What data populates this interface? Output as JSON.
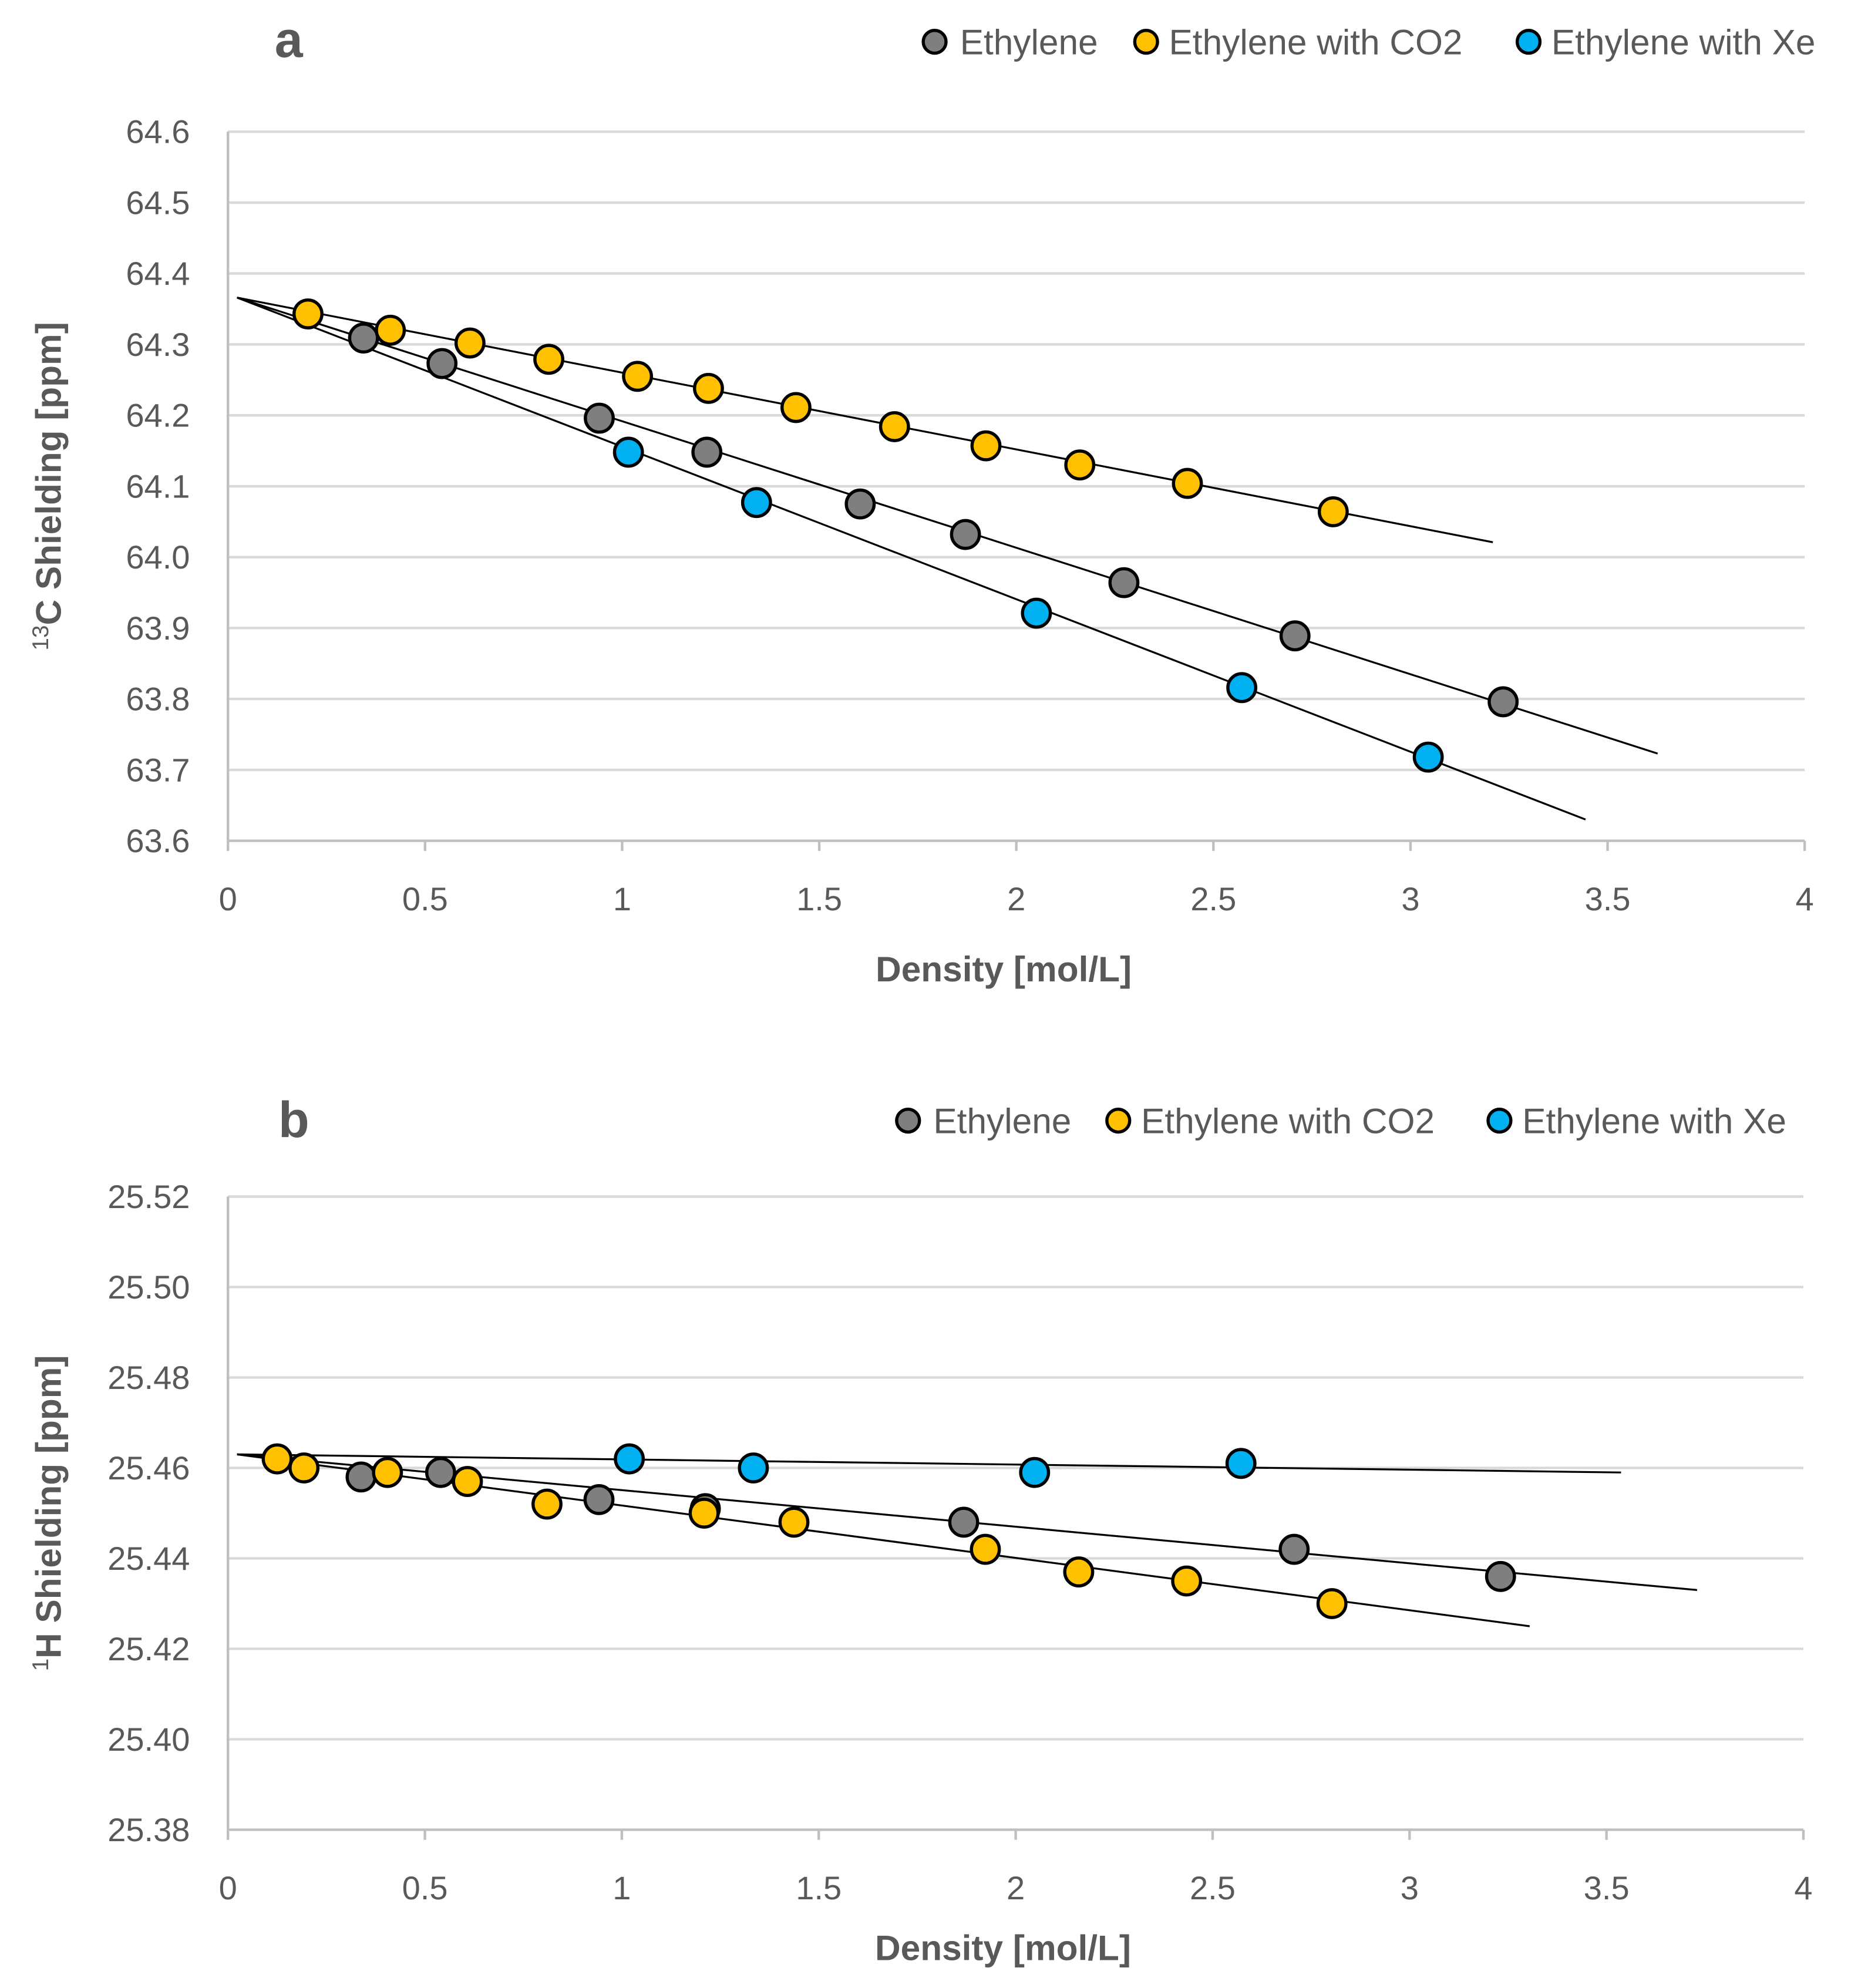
{
  "colors": {
    "Ethylene": "#7f7f7f",
    "Ethylene with CO2": "#ffc000",
    "Ethylene with Xe": "#00b0f0",
    "grid": "#d9d9d9",
    "axis": "#bfbfbf",
    "fit": "#000000"
  },
  "chart_data": [
    {
      "type": "scatter",
      "panel_label": "a",
      "xlabel": "Density  [mol/L]",
      "ylabel_sup": "13",
      "ylabel": "C Shielding  [ppm]",
      "xlim": [
        0,
        4
      ],
      "ylim": [
        63.6,
        64.6
      ],
      "xticks": [
        0,
        0.5,
        1,
        1.5,
        2,
        2.5,
        3,
        3.5,
        4
      ],
      "xtick_labels": [
        "0",
        "0.5",
        "1",
        "1.5",
        "2",
        "2.5",
        "3",
        "3.5",
        "4"
      ],
      "yticks": [
        63.6,
        63.7,
        63.8,
        63.9,
        64.0,
        64.1,
        64.2,
        64.3,
        64.4,
        64.5,
        64.6
      ],
      "ytick_labels": [
        "63.6",
        "63.7",
        "63.8",
        "63.9",
        "64.0",
        "64.1",
        "64.2",
        "64.3",
        "64.4",
        "64.5",
        "64.6"
      ],
      "grid": true,
      "legend_position": "top-right",
      "series": [
        {
          "name": "Ethylene",
          "x": [
            0.344,
            0.543,
            0.942,
            1.215,
            1.604,
            1.871,
            2.273,
            2.707,
            3.235
          ],
          "y": [
            64.309,
            64.273,
            64.196,
            64.148,
            64.075,
            64.032,
            63.964,
            63.889,
            63.796
          ],
          "fit": {
            "x": [
              0.023,
              3.627
            ],
            "y": [
              64.366,
              63.723
            ]
          }
        },
        {
          "name": "Ethylene with CO2",
          "x": [
            0.203,
            0.412,
            0.614,
            0.814,
            1.039,
            1.219,
            1.441,
            1.691,
            1.923,
            2.161,
            2.434,
            2.804
          ],
          "y": [
            64.343,
            64.32,
            64.302,
            64.279,
            64.255,
            64.238,
            64.211,
            64.184,
            64.157,
            64.13,
            64.104,
            64.064
          ],
          "fit": {
            "x": [
              0.023,
              3.209
            ],
            "y": [
              64.366,
              64.021
            ]
          }
        },
        {
          "name": "Ethylene with Xe",
          "x": [
            1.016,
            1.341,
            2.051,
            2.572,
            3.045
          ],
          "y": [
            64.148,
            64.077,
            63.921,
            63.816,
            63.718
          ],
          "fit": {
            "x": [
              0.023,
              3.444
            ],
            "y": [
              64.366,
              63.63
            ]
          }
        }
      ]
    },
    {
      "type": "scatter",
      "panel_label": "b",
      "xlabel": "Density  [mol/L]",
      "ylabel_sup": "1",
      "ylabel": "H Shielding  [ppm]",
      "xlim": [
        0,
        4
      ],
      "ylim": [
        25.38,
        25.52
      ],
      "xticks": [
        0,
        0.5,
        1,
        1.5,
        2,
        2.5,
        3,
        3.5,
        4
      ],
      "xtick_labels": [
        "0",
        "0.5",
        "1",
        "1.5",
        "2",
        "2.5",
        "3",
        "3.5",
        "4"
      ],
      "yticks": [
        25.38,
        25.4,
        25.42,
        25.44,
        25.46,
        25.48,
        25.5,
        25.52
      ],
      "ytick_labels": [
        "25.38",
        "25.40",
        "25.42",
        "25.44",
        "25.46",
        "25.48",
        "25.50",
        "25.52"
      ],
      "grid": true,
      "legend_position": "top-right",
      "series": [
        {
          "name": "Ethylene",
          "x": [
            0.338,
            0.54,
            0.942,
            1.212,
            1.868,
            2.707,
            3.231
          ],
          "y": [
            25.458,
            25.459,
            25.453,
            25.451,
            25.448,
            25.442,
            25.436
          ],
          "fit": {
            "x": [
              0.023,
              3.73
            ],
            "y": [
              25.463,
              25.433
            ]
          }
        },
        {
          "name": "Ethylene with CO2",
          "x": [
            0.125,
            0.193,
            0.405,
            0.608,
            0.81,
            1.209,
            1.437,
            1.923,
            2.16,
            2.434,
            2.803
          ],
          "y": [
            25.462,
            25.46,
            25.459,
            25.457,
            25.452,
            25.45,
            25.448,
            25.442,
            25.437,
            25.435,
            25.43
          ],
          "fit": {
            "x": [
              0.023,
              3.305
            ],
            "y": [
              25.463,
              25.425
            ]
          }
        },
        {
          "name": "Ethylene with Xe",
          "x": [
            1.019,
            1.334,
            2.048,
            2.572
          ],
          "y": [
            25.462,
            25.46,
            25.459,
            25.461
          ],
          "fit": {
            "x": [
              0.023,
              3.537
            ],
            "y": [
              25.463,
              25.459
            ]
          }
        }
      ]
    }
  ]
}
